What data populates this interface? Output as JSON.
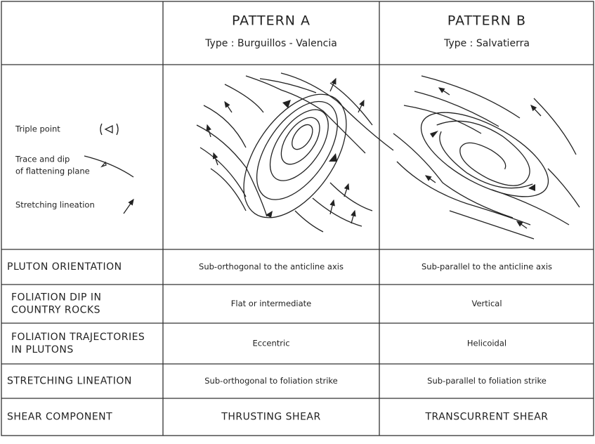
{
  "header": {
    "pattern_a": {
      "title": "PATTERN  A",
      "type": "Type :  Burguillos - Valencia"
    },
    "pattern_b": {
      "title": "PATTERN  B",
      "type": "Type : Salvatierra"
    }
  },
  "legend": {
    "triple_point": "Triple point",
    "flattening_plane": [
      "Trace and dip",
      "of flattening plane"
    ],
    "stretching_lineation": "Stretching lineation"
  },
  "rows": [
    {
      "label": [
        "PLUTON ORIENTATION"
      ],
      "a": "Sub-orthogonal to the anticline axis",
      "b": "Sub-parallel to the anticline axis"
    },
    {
      "label": [
        "FOLIATION  DIP  IN",
        "COUNTRY  ROCKS"
      ],
      "a": "Flat  or  intermediate",
      "b": "Vertical"
    },
    {
      "label": [
        "FOLIATION TRAJECTORIES",
        "IN  PLUTONS"
      ],
      "a": "Eccentric",
      "b": "Helicoidal"
    },
    {
      "label": [
        "STRETCHING LINEATION"
      ],
      "a": "Sub-orthogonal to foliation strike",
      "b": "Sub-parallel to foliation strike"
    },
    {
      "label": [
        "SHEAR  COMPONENT"
      ],
      "a": "THRUSTING   SHEAR",
      "b": "TRANSCURRENT   SHEAR"
    }
  ]
}
